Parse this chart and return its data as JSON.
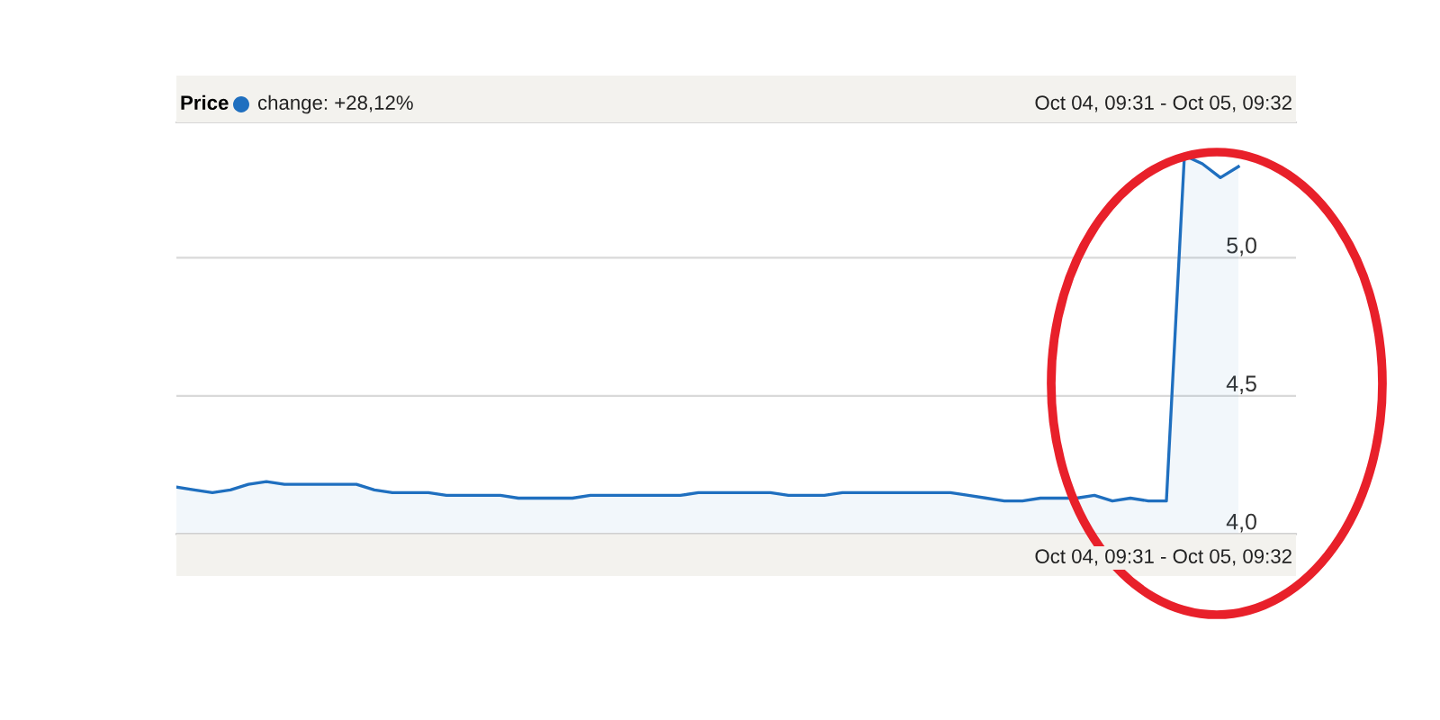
{
  "chart_data": {
    "type": "area",
    "title": "Price",
    "categories": [
      null,
      null,
      null,
      null,
      null,
      null,
      null,
      null,
      null,
      null,
      null,
      null,
      null,
      null,
      null,
      null,
      null,
      null,
      null,
      null,
      null,
      null,
      null,
      null,
      null,
      null,
      null,
      null,
      null,
      null,
      null,
      null,
      null,
      null,
      null,
      null,
      null,
      null,
      null,
      null,
      null,
      null,
      null,
      null,
      null,
      null,
      null,
      null,
      null,
      null,
      null,
      null,
      null,
      null,
      null,
      null,
      null,
      null,
      null,
      null
    ],
    "series": [
      {
        "color": "#1f6fbf",
        "values": [
          4.17,
          4.16,
          4.15,
          4.16,
          4.18,
          4.19,
          4.18,
          4.18,
          4.18,
          4.18,
          4.18,
          4.16,
          4.15,
          4.15,
          4.15,
          4.14,
          4.14,
          4.14,
          4.14,
          4.13,
          4.13,
          4.13,
          4.13,
          4.14,
          4.14,
          4.14,
          4.14,
          4.14,
          4.14,
          4.15,
          4.15,
          4.15,
          4.15,
          4.15,
          4.14,
          4.14,
          4.14,
          4.15,
          4.15,
          4.15,
          4.15,
          4.15,
          4.15,
          4.15,
          4.14,
          4.13,
          4.12,
          4.12,
          4.13,
          4.13,
          4.13,
          4.14,
          4.12,
          4.13,
          4.12,
          4.12,
          5.37,
          5.34,
          5.29,
          5.33
        ]
      }
    ],
    "ylim": [
      4.0,
      5.49
    ],
    "yticks": [
      {
        "value": 4.0,
        "label": "4,0"
      },
      {
        "value": 4.5,
        "label": "4,5"
      },
      {
        "value": 5.0,
        "label": "5,0"
      }
    ],
    "tick_labels": "y",
    "grid": "y",
    "annotations": [
      "change: +28,12%",
      "Oct 04, 09:31 - Oct 05, 09:32",
      "Oct 04, 09:31 - Oct 05, 09:32"
    ]
  }
}
